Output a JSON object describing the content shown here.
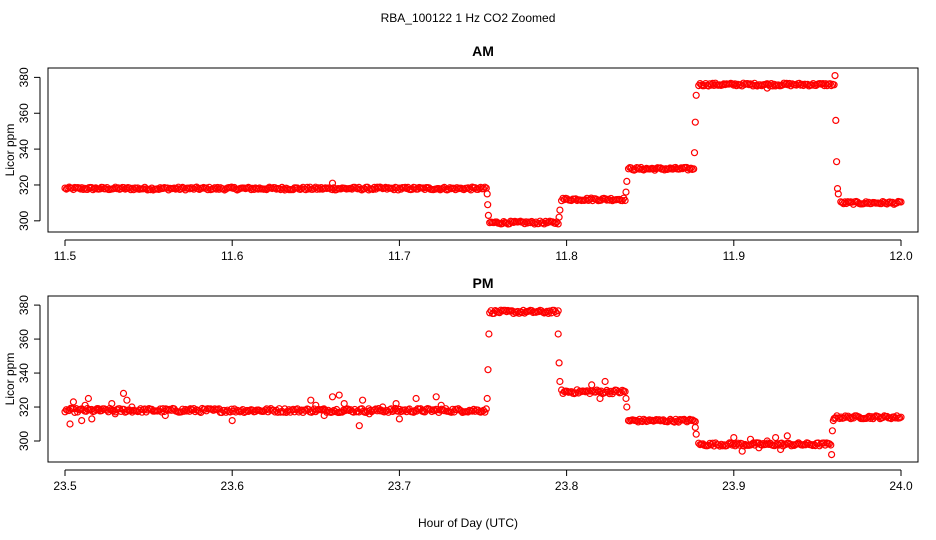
{
  "figure": {
    "title": "RBA_100122  1 Hz CO2 Zoomed",
    "xlabel": "Hour of Day (UTC)",
    "marker_color": "#ff0000"
  },
  "chart_data": [
    {
      "type": "scatter",
      "title": "AM",
      "xlabel": "",
      "ylabel": "Licor ppm",
      "xlim": [
        11.5,
        12.0
      ],
      "ylim": [
        296,
        383
      ],
      "x_ticks": [
        11.5,
        11.6,
        11.7,
        11.8,
        11.9,
        12.0
      ],
      "x_tick_labels": [
        "11.5",
        "11.6",
        "11.7",
        "11.8",
        "11.9",
        "12.0"
      ],
      "y_ticks": [
        300,
        320,
        340,
        360,
        380
      ],
      "y_tick_labels": [
        "300",
        "320",
        "340",
        "360",
        "380"
      ],
      "segments": [
        {
          "x_start": 11.5,
          "x_end": 11.752,
          "y": 318,
          "noise": 0.8
        },
        {
          "x_start": 11.754,
          "x_end": 11.795,
          "y": 299,
          "noise": 0.8
        },
        {
          "x_start": 11.797,
          "x_end": 11.835,
          "y": 312,
          "noise": 0.8
        },
        {
          "x_start": 11.837,
          "x_end": 11.876,
          "y": 329,
          "noise": 0.8
        },
        {
          "x_start": 11.879,
          "x_end": 11.96,
          "y": 376,
          "noise": 0.8
        },
        {
          "x_start": 11.964,
          "x_end": 12.0,
          "y": 310,
          "noise": 0.8
        }
      ],
      "transitions": [
        {
          "x": 11.7525,
          "y": 315
        },
        {
          "x": 11.7528,
          "y": 309
        },
        {
          "x": 11.7532,
          "y": 303
        },
        {
          "x": 11.7955,
          "y": 302
        },
        {
          "x": 11.796,
          "y": 306
        },
        {
          "x": 11.8355,
          "y": 316
        },
        {
          "x": 11.836,
          "y": 322
        },
        {
          "x": 11.8765,
          "y": 338
        },
        {
          "x": 11.877,
          "y": 355
        },
        {
          "x": 11.8775,
          "y": 370
        },
        {
          "x": 11.9605,
          "y": 381
        },
        {
          "x": 11.961,
          "y": 356
        },
        {
          "x": 11.9615,
          "y": 333
        },
        {
          "x": 11.962,
          "y": 318
        },
        {
          "x": 11.9625,
          "y": 315
        }
      ],
      "outliers": [
        {
          "x": 11.66,
          "y": 321
        },
        {
          "x": 11.92,
          "y": 374
        }
      ]
    },
    {
      "type": "scatter",
      "title": "PM",
      "xlabel": "Hour of Day (UTC)",
      "ylabel": "Licor ppm",
      "xlim": [
        23.5,
        24.0
      ],
      "ylim": [
        290,
        383
      ],
      "x_ticks": [
        23.5,
        23.6,
        23.7,
        23.8,
        23.9,
        24.0
      ],
      "x_tick_labels": [
        "23.5",
        "23.6",
        "23.7",
        "23.8",
        "23.9",
        "24.0"
      ],
      "y_ticks": [
        300,
        320,
        340,
        360,
        380
      ],
      "y_tick_labels": [
        "300",
        "320",
        "340",
        "360",
        "380"
      ],
      "segments": [
        {
          "x_start": 23.5,
          "x_end": 23.752,
          "y": 318,
          "noise": 1.2
        },
        {
          "x_start": 23.754,
          "x_end": 23.795,
          "y": 376,
          "noise": 1.0
        },
        {
          "x_start": 23.797,
          "x_end": 23.835,
          "y": 329,
          "noise": 1.2
        },
        {
          "x_start": 23.837,
          "x_end": 23.877,
          "y": 312,
          "noise": 0.9
        },
        {
          "x_start": 23.879,
          "x_end": 23.958,
          "y": 298,
          "noise": 1.0
        },
        {
          "x_start": 23.96,
          "x_end": 24.0,
          "y": 314,
          "noise": 0.9
        }
      ],
      "transitions": [
        {
          "x": 23.7525,
          "y": 325
        },
        {
          "x": 23.753,
          "y": 342
        },
        {
          "x": 23.7535,
          "y": 363
        },
        {
          "x": 23.795,
          "y": 363
        },
        {
          "x": 23.7955,
          "y": 346
        },
        {
          "x": 23.796,
          "y": 335
        },
        {
          "x": 23.8355,
          "y": 325
        },
        {
          "x": 23.836,
          "y": 320
        },
        {
          "x": 23.877,
          "y": 308
        },
        {
          "x": 23.8775,
          "y": 304
        },
        {
          "x": 23.9585,
          "y": 292
        },
        {
          "x": 23.959,
          "y": 306
        },
        {
          "x": 23.9595,
          "y": 312
        }
      ],
      "outliers": [
        {
          "x": 23.503,
          "y": 310
        },
        {
          "x": 23.505,
          "y": 323
        },
        {
          "x": 23.51,
          "y": 312
        },
        {
          "x": 23.512,
          "y": 321
        },
        {
          "x": 23.514,
          "y": 325
        },
        {
          "x": 23.516,
          "y": 313
        },
        {
          "x": 23.52,
          "y": 319
        },
        {
          "x": 23.528,
          "y": 322
        },
        {
          "x": 23.53,
          "y": 316
        },
        {
          "x": 23.535,
          "y": 328
        },
        {
          "x": 23.537,
          "y": 324
        },
        {
          "x": 23.54,
          "y": 320
        },
        {
          "x": 23.56,
          "y": 315
        },
        {
          "x": 23.575,
          "y": 319
        },
        {
          "x": 23.6,
          "y": 312
        },
        {
          "x": 23.647,
          "y": 324
        },
        {
          "x": 23.65,
          "y": 321
        },
        {
          "x": 23.655,
          "y": 315
        },
        {
          "x": 23.66,
          "y": 326
        },
        {
          "x": 23.664,
          "y": 327
        },
        {
          "x": 23.667,
          "y": 322
        },
        {
          "x": 23.67,
          "y": 318
        },
        {
          "x": 23.676,
          "y": 309
        },
        {
          "x": 23.678,
          "y": 324
        },
        {
          "x": 23.682,
          "y": 316
        },
        {
          "x": 23.69,
          "y": 320
        },
        {
          "x": 23.698,
          "y": 322
        },
        {
          "x": 23.7,
          "y": 313
        },
        {
          "x": 23.71,
          "y": 325
        },
        {
          "x": 23.714,
          "y": 318
        },
        {
          "x": 23.722,
          "y": 326
        },
        {
          "x": 23.725,
          "y": 321
        },
        {
          "x": 23.815,
          "y": 333
        },
        {
          "x": 23.82,
          "y": 325
        },
        {
          "x": 23.823,
          "y": 335
        },
        {
          "x": 23.9,
          "y": 302
        },
        {
          "x": 23.905,
          "y": 294
        },
        {
          "x": 23.91,
          "y": 301
        },
        {
          "x": 23.915,
          "y": 296
        },
        {
          "x": 23.92,
          "y": 300
        },
        {
          "x": 23.925,
          "y": 302
        },
        {
          "x": 23.928,
          "y": 295
        },
        {
          "x": 23.932,
          "y": 303
        }
      ]
    }
  ]
}
